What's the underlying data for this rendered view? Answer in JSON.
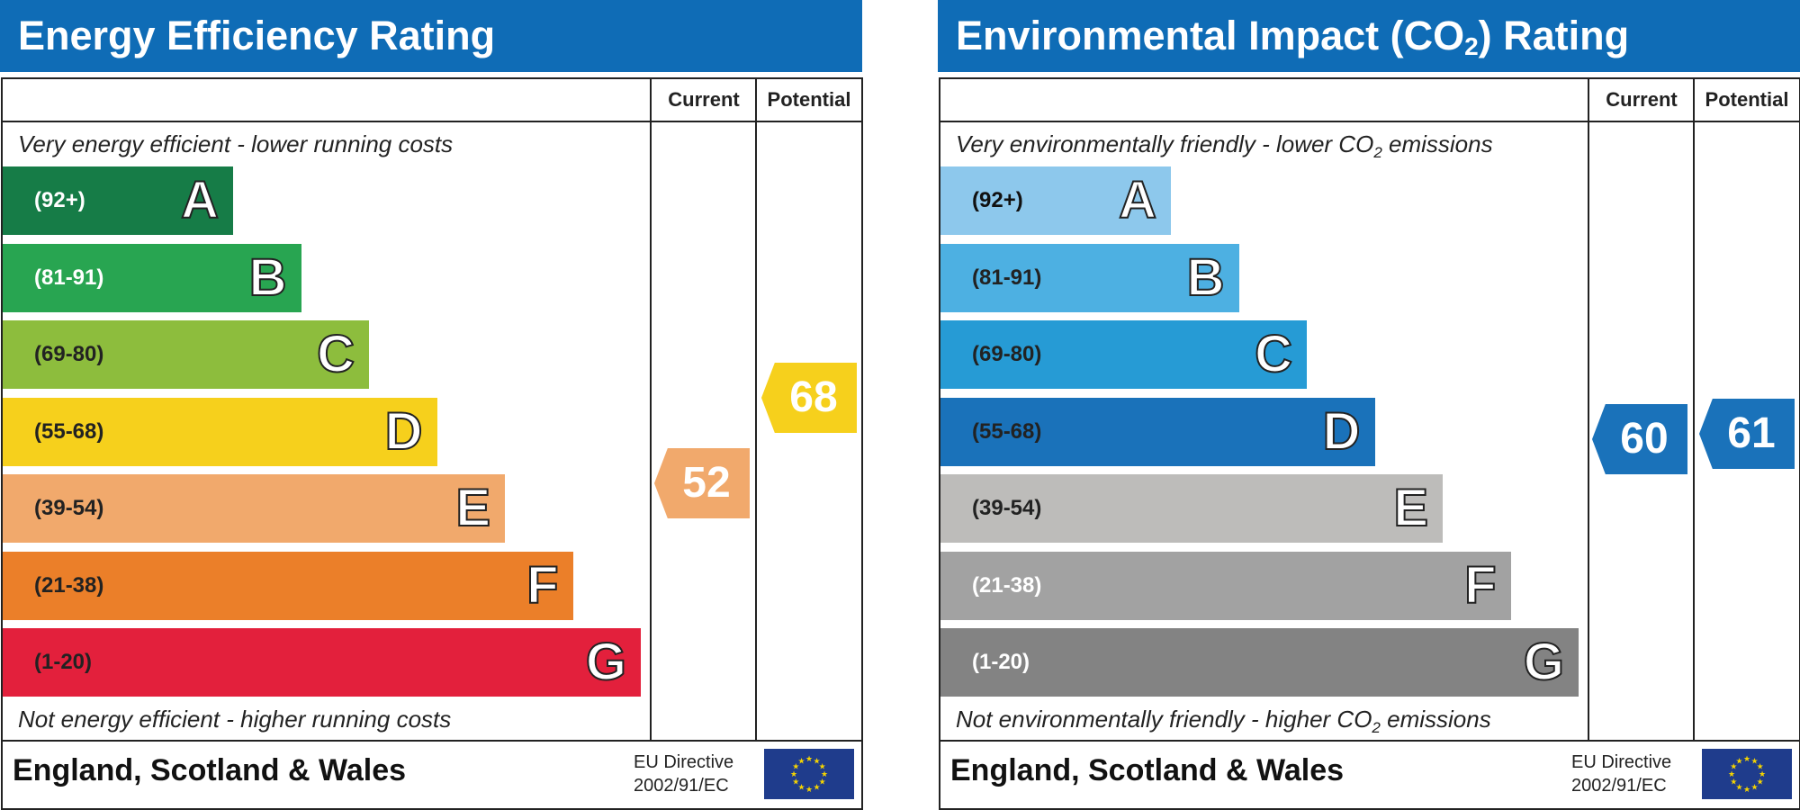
{
  "chart_data": [
    {
      "type": "bar",
      "title": "Energy Efficiency Rating",
      "columns": [
        "Current",
        "Potential"
      ],
      "top_caption": "Very energy efficient - lower running costs",
      "bottom_caption": "Not energy efficient - higher running costs",
      "bands": [
        {
          "letter": "A",
          "range": "(92+)",
          "color": "#167c47",
          "text_color": "#ffffff"
        },
        {
          "letter": "B",
          "range": "(81-91)",
          "color": "#28a551",
          "text_color": "#ffffff"
        },
        {
          "letter": "C",
          "range": "(69-80)",
          "color": "#8dbd3d",
          "text_color": "#222222"
        },
        {
          "letter": "D",
          "range": "(55-68)",
          "color": "#f6d01c",
          "text_color": "#222222"
        },
        {
          "letter": "E",
          "range": "(39-54)",
          "color": "#f1a96c",
          "text_color": "#222222"
        },
        {
          "letter": "F",
          "range": "(21-38)",
          "color": "#eb7f29",
          "text_color": "#222222"
        },
        {
          "letter": "G",
          "range": "(1-20)",
          "color": "#e3203c",
          "text_color": "#222222"
        }
      ],
      "current": {
        "value": 52,
        "color": "#f1a96c"
      },
      "potential": {
        "value": 68,
        "color": "#f6d01c"
      },
      "footer": {
        "region": "England, Scotland & Wales",
        "directive_line1": "EU Directive",
        "directive_line2": "2002/91/EC"
      }
    },
    {
      "type": "bar",
      "title_main": "Environmental Impact (CO",
      "title_sub": "2",
      "title_end": ") Rating",
      "columns": [
        "Current",
        "Potential"
      ],
      "top_caption_main": "Very environmentally friendly - lower CO",
      "top_caption_sub": "2",
      "top_caption_end": " emissions",
      "bottom_caption_main": "Not environmentally friendly - higher CO",
      "bottom_caption_sub": "2",
      "bottom_caption_end": " emissions",
      "bands": [
        {
          "letter": "A",
          "range": "(92+)",
          "color": "#8dc8ec",
          "text_color": "#111111"
        },
        {
          "letter": "B",
          "range": "(81-91)",
          "color": "#4db0e2",
          "text_color": "#222222"
        },
        {
          "letter": "C",
          "range": "(69-80)",
          "color": "#269bd5",
          "text_color": "#222222"
        },
        {
          "letter": "D",
          "range": "(55-68)",
          "color": "#1a72ba",
          "text_color": "#222222"
        },
        {
          "letter": "E",
          "range": "(39-54)",
          "color": "#bdbcba",
          "text_color": "#222222"
        },
        {
          "letter": "F",
          "range": "(21-38)",
          "color": "#a2a2a2",
          "text_color": "#ffffff"
        },
        {
          "letter": "G",
          "range": "(1-20)",
          "color": "#838383",
          "text_color": "#ffffff"
        }
      ],
      "current": {
        "value": 60,
        "color": "#1a72ba"
      },
      "potential": {
        "value": 61,
        "color": "#1a72ba"
      },
      "footer": {
        "region": "England, Scotland & Wales",
        "directive_line1": "EU Directive",
        "directive_line2": "2002/91/EC"
      }
    }
  ],
  "icons": {
    "flag": "eu-flag-icon"
  }
}
